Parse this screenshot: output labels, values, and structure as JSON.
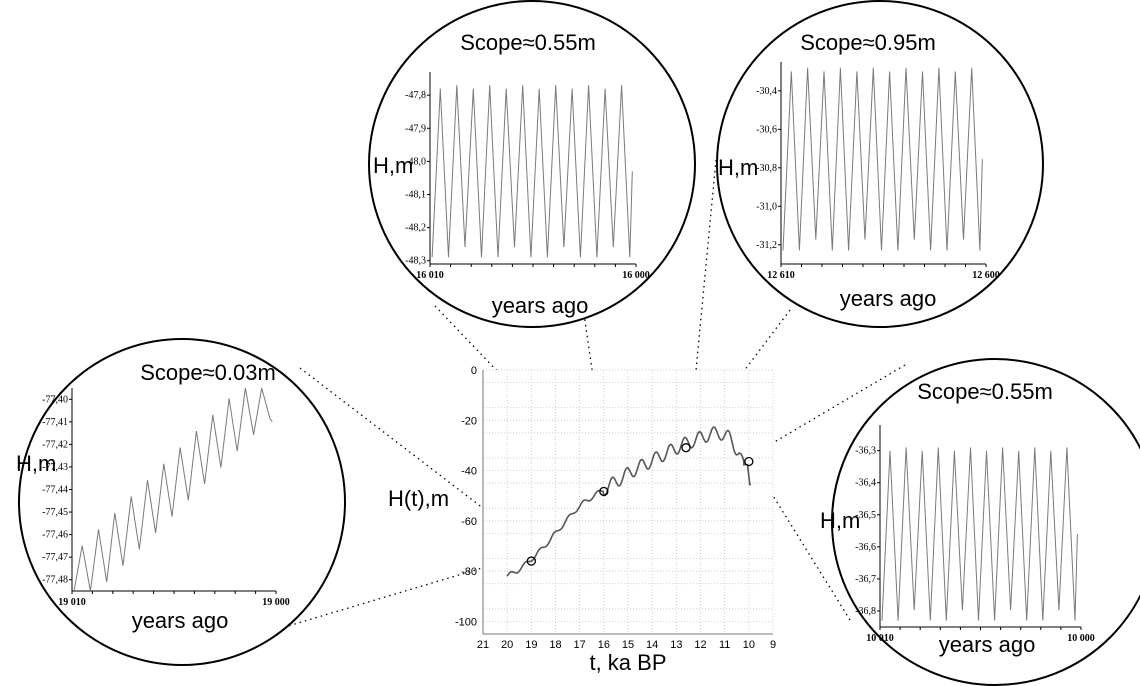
{
  "chart_data": [
    {
      "id": "main",
      "type": "line",
      "xlabel": "t, ka BP",
      "ylabel": "H(t),m",
      "xlim": [
        21,
        9
      ],
      "ylim": [
        -105,
        0
      ],
      "x_ticks": [
        "21",
        "20",
        "19",
        "18",
        "17",
        "16",
        "15",
        "14",
        "13",
        "12",
        "11",
        "10",
        "9"
      ],
      "y_ticks": [
        "0",
        "-20",
        "-40",
        "-60",
        "-80",
        "-100"
      ],
      "grid": true,
      "series": [
        {
          "x": [
            20,
            19.6,
            19.2,
            18.8,
            18.4,
            18,
            17.6,
            17.2,
            16.8,
            16.4,
            16,
            15.6,
            15.2,
            14.8,
            14.4,
            14,
            13.6,
            13.2,
            12.8,
            12.4,
            12,
            11.6,
            11.2,
            10.8,
            10.4,
            10.2,
            10.05,
            9.95
          ],
          "y": [
            -82,
            -80,
            -77,
            -73.5,
            -69.5,
            -65,
            -60.5,
            -56,
            -52.5,
            -50,
            -47.5,
            -45,
            -42.5,
            -40,
            -38,
            -36,
            -34,
            -32,
            -30,
            -28.5,
            -27,
            -25.5,
            -25,
            -27,
            -33,
            -39,
            -37,
            -45
          ]
        }
      ],
      "markers": [
        {
          "x": 19,
          "y": -76
        },
        {
          "x": 16,
          "y": -48.3
        },
        {
          "x": 12.6,
          "y": -30.9
        },
        {
          "x": 10,
          "y": -36.4
        }
      ]
    },
    {
      "id": "inset-19000",
      "type": "line",
      "title": "Scope≈0.03m",
      "xlabel": "years ago",
      "ylabel": "H,m",
      "xlim": [
        19010,
        19000
      ],
      "x_ticks": [
        "19 010",
        "19 000"
      ],
      "ylim": [
        -77.485,
        -77.395
      ],
      "y_ticks": [
        "-77,40",
        "-77,41",
        "-77,42",
        "-77,43",
        "-77,44",
        "-77,45",
        "-77,46",
        "-77,47",
        "-77,48"
      ],
      "y_tick_values": [
        -77.4,
        -77.41,
        -77.42,
        -77.43,
        -77.44,
        -77.45,
        -77.46,
        -77.47,
        -77.48
      ],
      "oscillation": {
        "cycles": 12,
        "start": -77.485,
        "end": -77.398,
        "amplitude": 0.03
      }
    },
    {
      "id": "inset-16000",
      "type": "line",
      "title": "Scope≈0.55m",
      "xlabel": "years ago",
      "ylabel": "H,m",
      "xlim": [
        16010,
        16000
      ],
      "x_ticks": [
        "16 010",
        "16 000"
      ],
      "ylim": [
        -48.31,
        -47.73
      ],
      "y_ticks": [
        "-47,8",
        "-47,9",
        "-48,0",
        "-48,1",
        "-48,2",
        "-48,3"
      ],
      "y_tick_values": [
        -47.8,
        -47.9,
        -48.0,
        -48.1,
        -48.2,
        -48.3
      ],
      "oscillation": {
        "cycles": 12,
        "high": -47.77,
        "low": -48.29
      }
    },
    {
      "id": "inset-12600",
      "type": "line",
      "title": "Scope≈0.95m",
      "xlabel": "years ago",
      "ylabel": "H,m",
      "xlim": [
        12610,
        12600
      ],
      "x_ticks": [
        "12 610",
        "12 600"
      ],
      "ylim": [
        -31.3,
        -30.25
      ],
      "y_ticks": [
        "-30,4",
        "-30,6",
        "-30,8",
        "-31,0",
        "-31,2"
      ],
      "y_tick_values": [
        -30.4,
        -30.6,
        -30.8,
        -31.0,
        -31.2
      ],
      "oscillation": {
        "cycles": 12,
        "high": -30.28,
        "low": -31.23
      }
    },
    {
      "id": "inset-10000",
      "type": "line",
      "title": "Scope≈0.55m",
      "xlabel": "years ago",
      "ylabel": "H,m",
      "xlim": [
        10010,
        10000
      ],
      "x_ticks": [
        "10 010",
        "10 000"
      ],
      "ylim": [
        -36.85,
        -36.22
      ],
      "y_ticks": [
        "-36,3",
        "-36,4",
        "-36,5",
        "-36,6",
        "-36,7",
        "-36,8"
      ],
      "y_tick_values": [
        -36.3,
        -36.4,
        -36.5,
        -36.6,
        -36.7,
        -36.8
      ],
      "oscillation": {
        "cycles": 12,
        "high": -36.29,
        "low": -36.83
      }
    }
  ]
}
